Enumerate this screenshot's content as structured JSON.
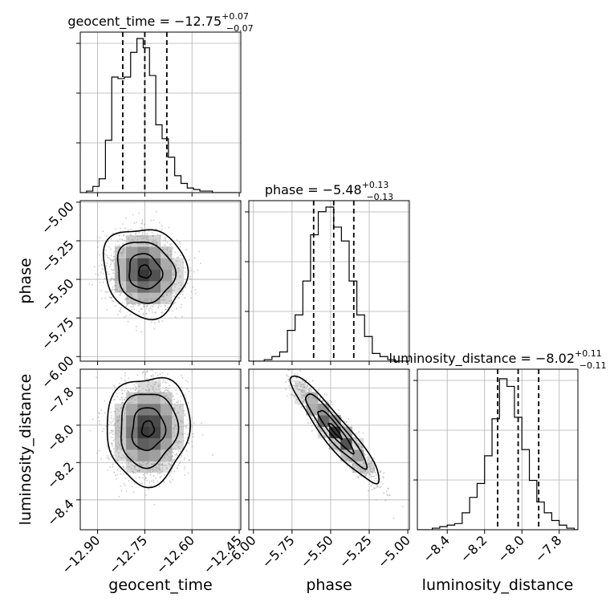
{
  "chart_data": {
    "type": "corner",
    "parameters": [
      "geocent_time",
      "phase",
      "luminosity_distance"
    ],
    "titles": [
      {
        "param": "geocent_time",
        "prefix": "geocent_time = ",
        "median": "−12.75",
        "upper": "+0.07",
        "lower": "−0.07"
      },
      {
        "param": "phase",
        "prefix": "phase = ",
        "median": "−5.48",
        "upper": "+0.13",
        "lower": "−0.13"
      },
      {
        "param": "luminosity_distance",
        "prefix": "luminosity_distance = ",
        "median": "−8.02",
        "upper": "+0.11",
        "lower": "−0.11"
      }
    ],
    "axes": {
      "geocent_time": {
        "range": [
          -12.955,
          -12.445
        ],
        "ticks": [
          -12.9,
          -12.75,
          -12.6,
          -12.45
        ],
        "tick_labels": [
          "−12.90",
          "−12.75",
          "−12.60",
          "−12.45"
        ]
      },
      "phase": {
        "range": [
          -6.03,
          -4.99
        ],
        "ticks": [
          -6.0,
          -5.75,
          -5.5,
          -5.25,
          -5.0
        ],
        "tick_labels": [
          "−6.00",
          "−5.75",
          "−5.50",
          "−5.25",
          "−5.00"
        ]
      },
      "luminosity_distance": {
        "range": [
          -8.56,
          -7.7
        ],
        "ticks": [
          -8.4,
          -8.2,
          -8.0,
          -7.8
        ],
        "tick_labels": [
          "−8.4",
          "−8.2",
          "−8.0",
          "−7.8"
        ]
      }
    },
    "quantiles": {
      "geocent_time": [
        -12.82,
        -12.75,
        -12.68
      ],
      "phase": [
        -5.61,
        -5.48,
        -5.35
      ],
      "luminosity_distance": [
        -8.13,
        -8.02,
        -7.91
      ]
    },
    "histograms": {
      "geocent_time": {
        "edges": [
          -12.955,
          -12.935,
          -12.915,
          -12.895,
          -12.875,
          -12.855,
          -12.835,
          -12.815,
          -12.795,
          -12.775,
          -12.755,
          -12.735,
          -12.715,
          -12.695,
          -12.675,
          -12.655,
          -12.635,
          -12.615,
          -12.595,
          -12.575,
          -12.555,
          -12.535,
          -12.515,
          -12.495,
          -12.475,
          -12.455
        ],
        "counts": [
          0,
          0.01,
          0.04,
          0.09,
          0.34,
          0.75,
          0.74,
          0.75,
          0.91,
          1.0,
          0.94,
          0.76,
          0.44,
          0.35,
          0.23,
          0.11,
          0.06,
          0.03,
          0.02,
          0.01,
          0.01,
          0,
          0,
          0,
          0
        ]
      },
      "phase": {
        "edges": [
          -6.03,
          -5.98,
          -5.93,
          -5.88,
          -5.83,
          -5.78,
          -5.73,
          -5.68,
          -5.63,
          -5.58,
          -5.53,
          -5.48,
          -5.43,
          -5.38,
          -5.33,
          -5.28,
          -5.23,
          -5.18,
          -5.13,
          -5.08,
          -5.03,
          -4.99
        ],
        "counts": [
          0,
          0,
          0.01,
          0.03,
          0.06,
          0.2,
          0.3,
          0.52,
          0.82,
          0.97,
          1.0,
          0.87,
          0.78,
          0.52,
          0.3,
          0.16,
          0.05,
          0.03,
          0.01,
          0.0,
          0
        ]
      },
      "luminosity_distance": {
        "edges": [
          -8.56,
          -8.52,
          -8.48,
          -8.44,
          -8.4,
          -8.36,
          -8.32,
          -8.28,
          -8.24,
          -8.2,
          -8.16,
          -8.12,
          -8.08,
          -8.04,
          -8.0,
          -7.96,
          -7.92,
          -7.88,
          -7.84,
          -7.8,
          -7.76,
          -7.72,
          -7.7
        ],
        "counts": [
          0,
          0,
          0.01,
          0.02,
          0.03,
          0.04,
          0.11,
          0.21,
          0.3,
          0.48,
          0.72,
          0.98,
          0.93,
          0.73,
          0.52,
          0.32,
          0.18,
          0.11,
          0.06,
          0.03,
          0.01,
          0
        ]
      }
    },
    "pairs": [
      {
        "x": "geocent_time",
        "y": "phase",
        "mean": [
          -12.75,
          -5.45
        ],
        "sd": [
          0.055,
          0.12
        ],
        "rho": -0.1,
        "n": 2300
      },
      {
        "x": "geocent_time",
        "y": "luminosity_distance",
        "mean": [
          -12.74,
          -8.02
        ],
        "sd": [
          0.055,
          0.12
        ],
        "rho": 0.05,
        "n": 2300
      },
      {
        "x": "phase",
        "y": "luminosity_distance",
        "mean": [
          -5.47,
          -8.03
        ],
        "sd": [
          0.12,
          0.12
        ],
        "rho": -0.93,
        "n": 2300
      }
    ],
    "colors": {
      "line": "#000000",
      "grid": "#b0b0b0",
      "scatter": "#9e9e9e"
    },
    "grid": true
  }
}
